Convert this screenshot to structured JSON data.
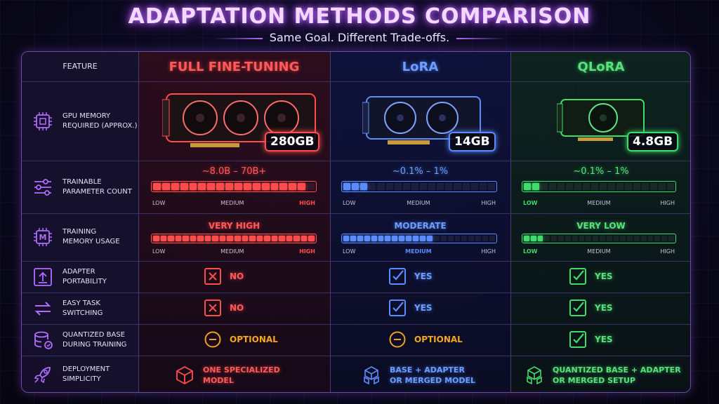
{
  "header": {
    "title": "ADAPTATION METHODS COMPARISON",
    "subtitle": "Same Goal. Different Trade-offs."
  },
  "columns": {
    "feature": "FEATURE",
    "full": "FULL FINE-TUNING",
    "lora": "LoRA",
    "qlora": "QLoRA"
  },
  "colors": {
    "full": "#ff4d4d",
    "lora": "#5b8cff",
    "qlora": "#3fdc6a",
    "accent": "#b26bff"
  },
  "rows": {
    "gpu_memory": {
      "label_l1": "GPU MEMORY",
      "label_l2": "REQUIRED (APPROX.)",
      "icon": "chip-icon",
      "full": "280GB",
      "lora": "14GB",
      "qlora": "4.8GB"
    },
    "trainable_params": {
      "label_l1": "TRAINABLE",
      "label_l2": "PARAMETER COUNT",
      "icon": "sliders-icon",
      "full": {
        "value": "~8.0B – 70B+",
        "level": 0.95
      },
      "lora": {
        "value": "~0.1% – 1%",
        "level": 0.15
      },
      "qlora": {
        "value": "~0.1% – 1%",
        "level": 0.1
      }
    },
    "training_memory": {
      "label_l1": "TRAINING",
      "label_l2": "MEMORY USAGE",
      "icon": "memory-icon",
      "icon_letter": "M",
      "full": {
        "value": "VERY HIGH",
        "level": 1.0
      },
      "lora": {
        "value": "MODERATE",
        "level": 0.6
      },
      "qlora": {
        "value": "VERY LOW",
        "level": 0.15
      }
    },
    "adapter_portability": {
      "label_l1": "ADAPTER",
      "label_l2": "PORTABILITY",
      "icon": "upload-icon",
      "full": "NO",
      "lora": "YES",
      "qlora": "YES"
    },
    "task_switching": {
      "label_l1": "EASY TASK",
      "label_l2": "SWITCHING",
      "icon": "swap-icon",
      "full": "NO",
      "lora": "YES",
      "qlora": "YES"
    },
    "quantized_base": {
      "label_l1": "QUANTIZED BASE",
      "label_l2": "DURING TRAINING",
      "icon": "database-icon",
      "full": "OPTIONAL",
      "lora": "OPTIONAL",
      "qlora": "YES"
    },
    "deployment": {
      "label_l1": "DEPLOYMENT",
      "label_l2": "SIMPLICITY",
      "icon": "rocket-icon",
      "full_l1": "ONE SPECIALIZED",
      "full_l2": "MODEL",
      "lora_l1": "BASE + ADAPTER",
      "lora_l2": "OR MERGED MODEL",
      "qlora_l1": "QUANTIZED BASE + ADAPTER",
      "qlora_l2": "OR MERGED SETUP"
    }
  },
  "scale": {
    "low": "LOW",
    "medium": "MEDIUM",
    "high": "HIGH"
  }
}
